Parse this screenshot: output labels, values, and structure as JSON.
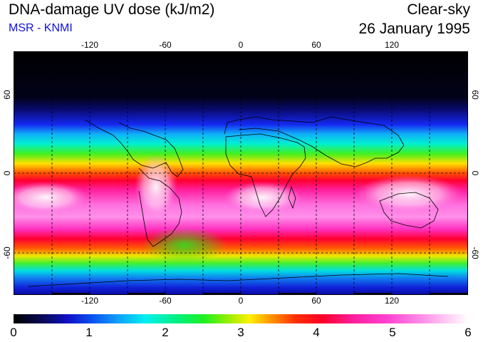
{
  "header": {
    "title": "DNA-damage UV dose (kJ/m2)",
    "subtitle": "MSR - KNMI",
    "condition": "Clear-sky",
    "date": "26 January 1995"
  },
  "map": {
    "lon_ticks_top": [
      "-120",
      "-60",
      "0",
      "60",
      "120"
    ],
    "lon_ticks_bottom": [
      "-120",
      "-60",
      "0",
      "60",
      "120"
    ],
    "lat_ticks_left": [
      "60",
      "0",
      "-60"
    ],
    "lat_ticks_right": [
      "60",
      "0",
      "-60"
    ],
    "gridlines": "dashed",
    "colors": {
      "low": "#000000",
      "blue": "#1010c8",
      "cyan": "#00f0f0",
      "green": "#20f020",
      "yellow": "#fff000",
      "red": "#ff0028",
      "magenta": "#ff40d0",
      "high": "#ffffff"
    }
  },
  "colorbar": {
    "min": 0,
    "max": 6,
    "labels": [
      "0",
      "1",
      "2",
      "3",
      "4",
      "5",
      "6"
    ]
  }
}
